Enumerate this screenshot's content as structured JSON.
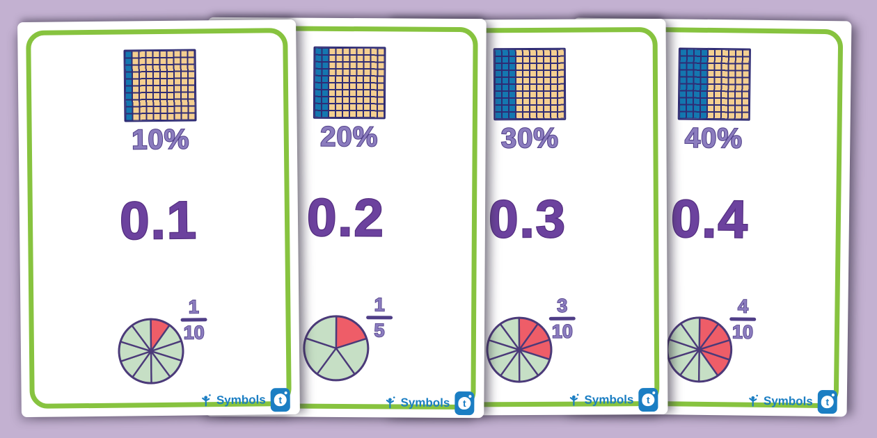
{
  "page": {
    "background_color": "#c3b1d1",
    "card_border_color": "#87c33f"
  },
  "brand": {
    "label": "Symbols"
  },
  "colors": {
    "grid_line": "#2f2c74",
    "grid_unshaded": "#f4cf90",
    "grid_shaded": "#1477b0",
    "pie_shaded": "#ee5d68",
    "pie_unshaded": "#c6dfc5",
    "pie_stroke": "#4b3a79",
    "label_purple": "#8b7cbe",
    "label_purple_outline": "#4f3e87",
    "decimal_purple": "#6c429e",
    "brand_blue": "#1b7ec3"
  },
  "cards": [
    {
      "name": "ten-percent",
      "percent": "10%",
      "decimal": "0.1",
      "fraction": {
        "numerator": "1",
        "denominator": "10"
      },
      "hundred_square": {
        "rows": 10,
        "columns": 10,
        "shaded_columns": 1,
        "shaded_cells": 10
      },
      "pie": {
        "slices": 10,
        "shaded_slices": 1
      }
    },
    {
      "name": "twenty-percent",
      "percent": "20%",
      "decimal": "0.2",
      "fraction": {
        "numerator": "1",
        "denominator": "5"
      },
      "hundred_square": {
        "rows": 10,
        "columns": 10,
        "shaded_columns": 2,
        "shaded_cells": 20
      },
      "pie": {
        "slices": 5,
        "shaded_slices": 1
      }
    },
    {
      "name": "thirty-percent",
      "percent": "30%",
      "decimal": "0.3",
      "fraction": {
        "numerator": "3",
        "denominator": "10"
      },
      "hundred_square": {
        "rows": 10,
        "columns": 10,
        "shaded_columns": 3,
        "shaded_cells": 30
      },
      "pie": {
        "slices": 10,
        "shaded_slices": 3
      }
    },
    {
      "name": "forty-percent",
      "percent": "40%",
      "decimal": "0.4",
      "fraction": {
        "numerator": "4",
        "denominator": "10"
      },
      "hundred_square": {
        "rows": 10,
        "columns": 10,
        "shaded_columns": 4,
        "shaded_cells": 40
      },
      "pie": {
        "slices": 10,
        "shaded_slices": 4
      }
    }
  ]
}
